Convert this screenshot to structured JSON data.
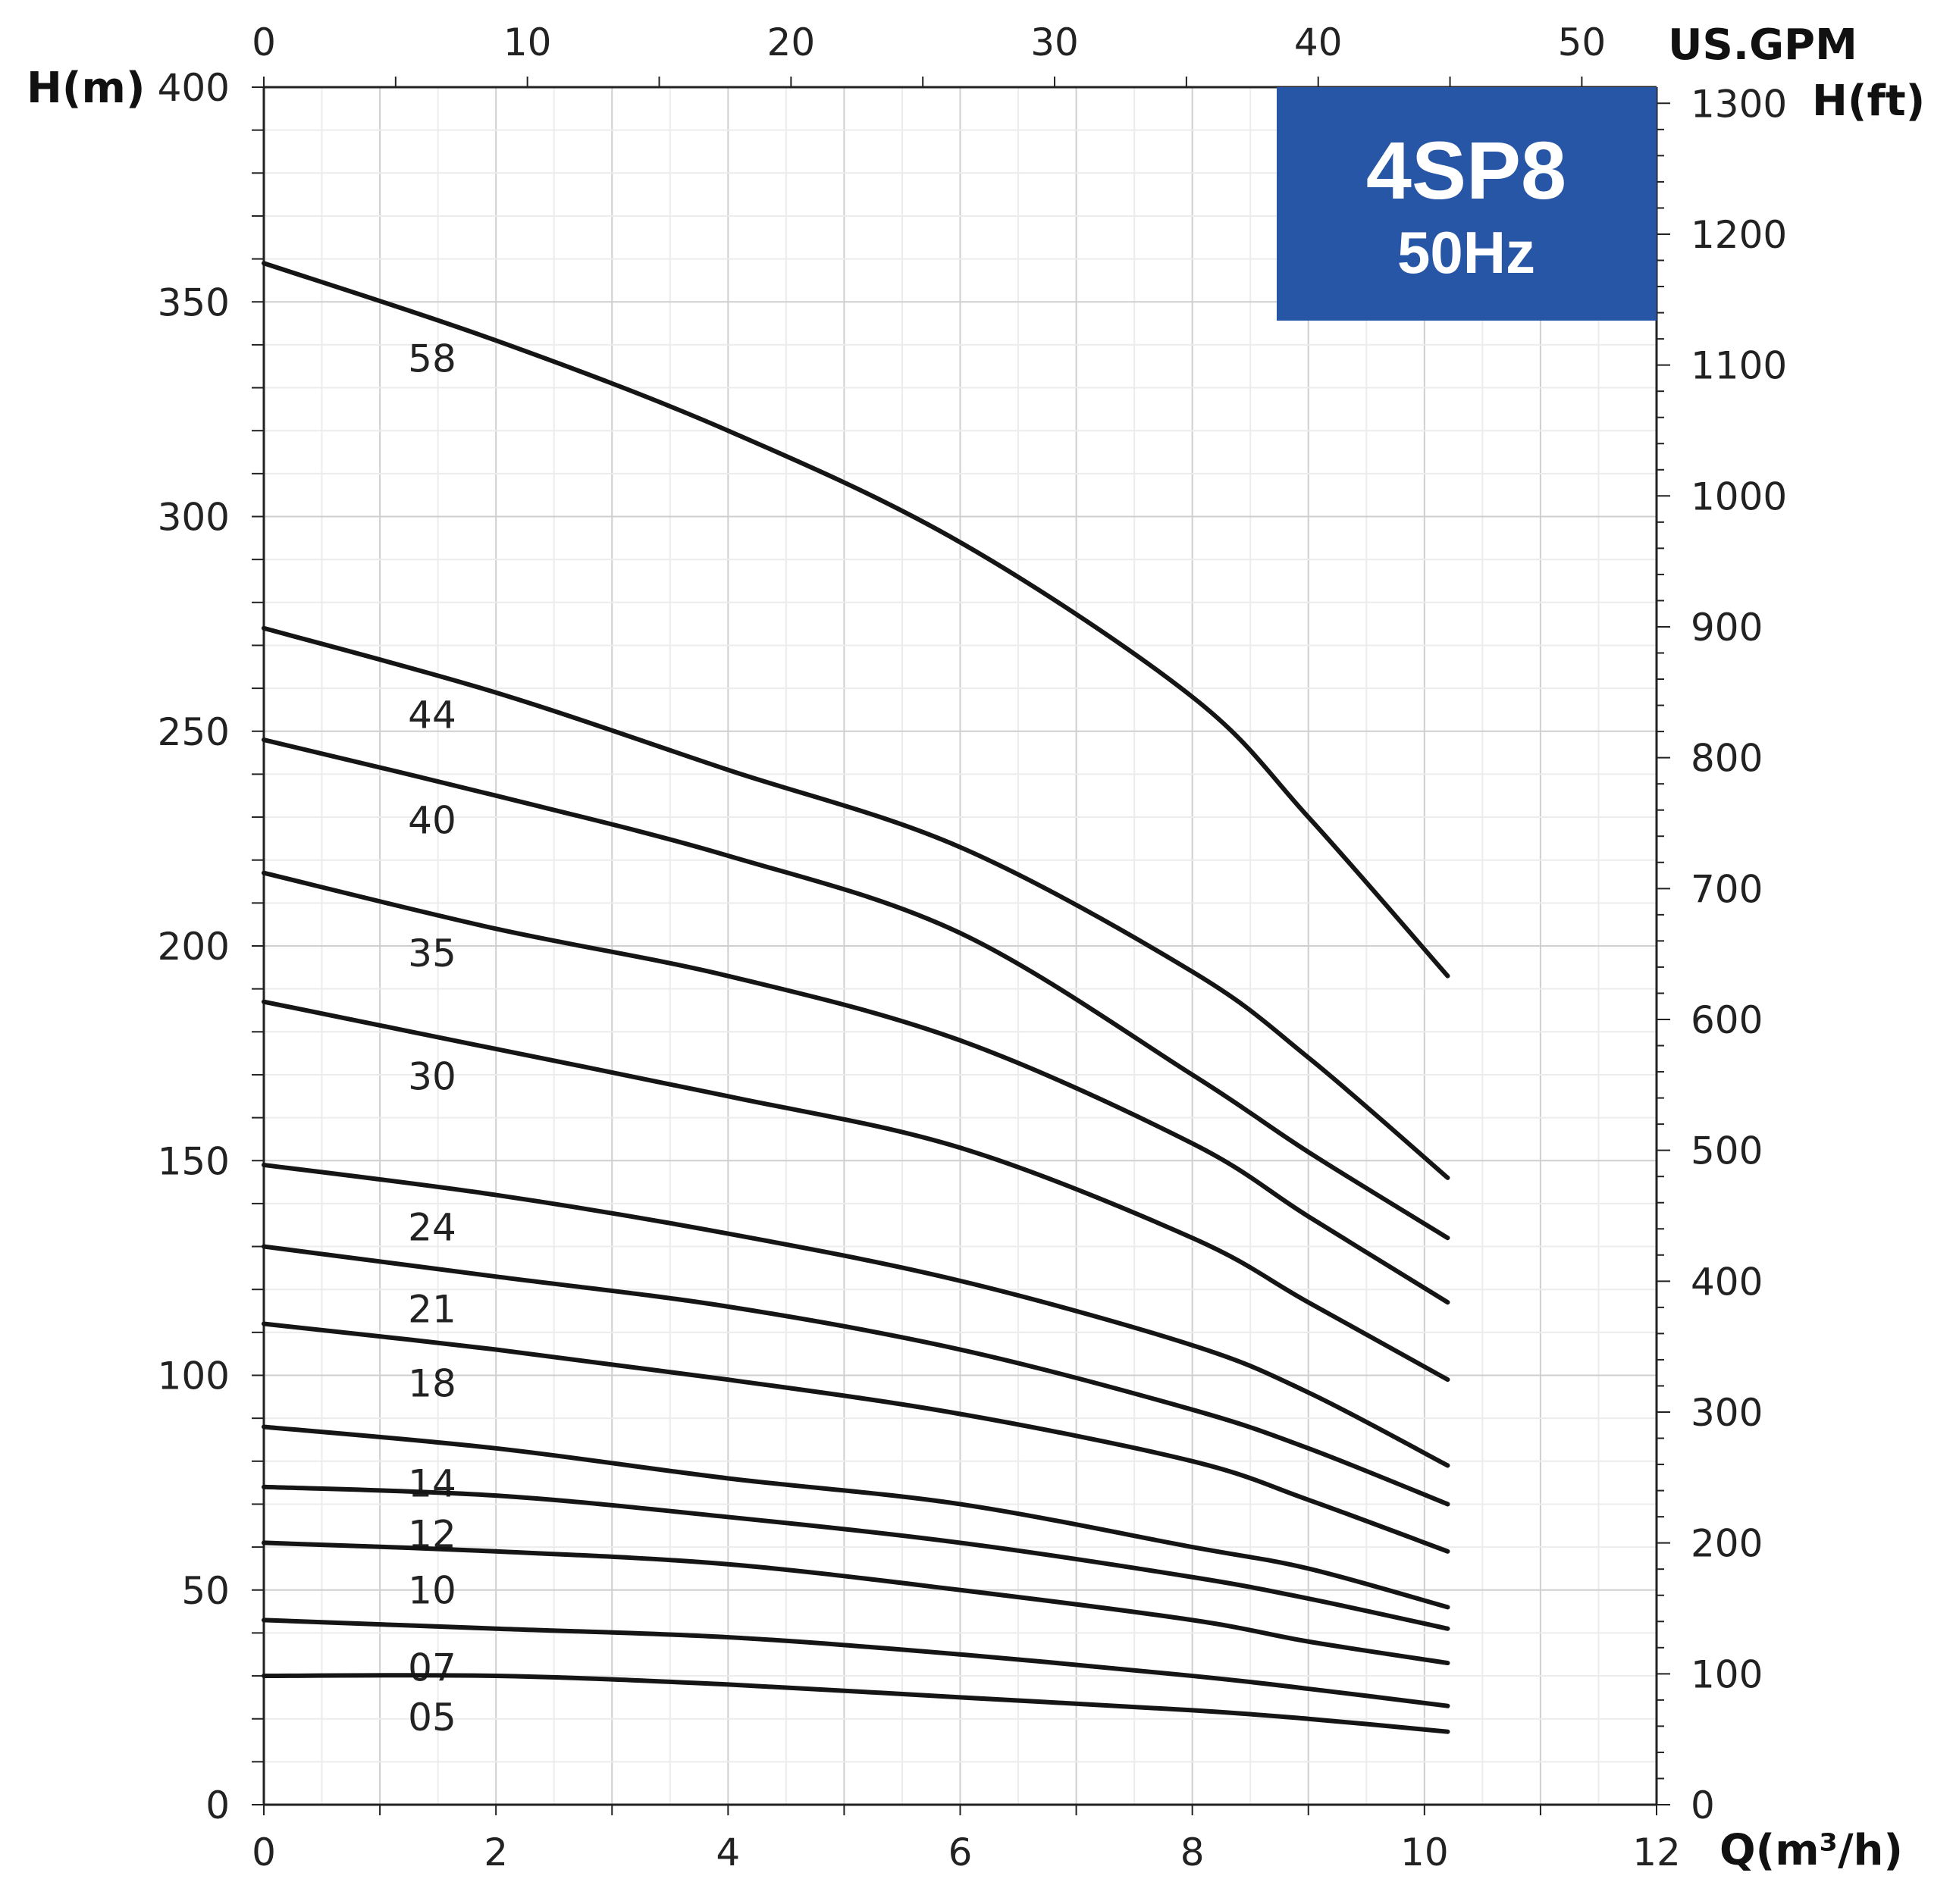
{
  "chart_data": {
    "type": "line",
    "badge": {
      "title": "4SP8",
      "subtitle": "50Hz",
      "color": "#2756a6"
    },
    "xlabel": "Q(m³/h)",
    "ylabel": "H(m)",
    "top_axis_label": "US.GPM",
    "right_axis_label": "H(ft)",
    "xlim": [
      0,
      12
    ],
    "ylim": [
      0,
      400
    ],
    "x_ticks": [
      0,
      2,
      4,
      6,
      8,
      10,
      12
    ],
    "y_ticks": [
      0,
      50,
      100,
      150,
      200,
      250,
      300,
      350,
      400
    ],
    "top_ticks": [
      0,
      10,
      20,
      30,
      40,
      50
    ],
    "right_ticks": [
      0,
      100,
      200,
      300,
      400,
      500,
      600,
      700,
      800,
      900,
      1000,
      1100,
      1200,
      1300
    ],
    "grid": true,
    "x": [
      0,
      2,
      4,
      6,
      8,
      9,
      10.2
    ],
    "series": [
      {
        "name": "58",
        "values": [
          359,
          341,
          320,
          294,
          258,
          230,
          193
        ]
      },
      {
        "name": "44",
        "values": [
          274,
          259,
          241,
          223,
          194,
          174,
          146
        ]
      },
      {
        "name": "40",
        "values": [
          248,
          235,
          221,
          203,
          170,
          152,
          132
        ]
      },
      {
        "name": "35",
        "values": [
          217,
          204,
          193,
          178,
          154,
          137,
          117
        ]
      },
      {
        "name": "30",
        "values": [
          187,
          176,
          165,
          153,
          132,
          117,
          99
        ]
      },
      {
        "name": "24",
        "values": [
          149,
          142,
          133,
          122,
          107,
          96,
          79
        ]
      },
      {
        "name": "21",
        "values": [
          130,
          123,
          116,
          106,
          92,
          83,
          70
        ]
      },
      {
        "name": "18",
        "values": [
          112,
          106,
          99,
          91,
          80,
          71,
          59
        ]
      },
      {
        "name": "14",
        "values": [
          88,
          83,
          76,
          70,
          60,
          55,
          46
        ]
      },
      {
        "name": "12",
        "values": [
          74,
          72,
          67,
          61,
          53,
          48,
          41
        ]
      },
      {
        "name": "10",
        "values": [
          61,
          59,
          56,
          50,
          43,
          38,
          33
        ]
      },
      {
        "name": "07",
        "values": [
          43,
          41,
          39,
          35,
          30,
          27,
          23
        ]
      },
      {
        "name": "05",
        "values": [
          30,
          30,
          28,
          25,
          22,
          20,
          17
        ]
      }
    ]
  }
}
